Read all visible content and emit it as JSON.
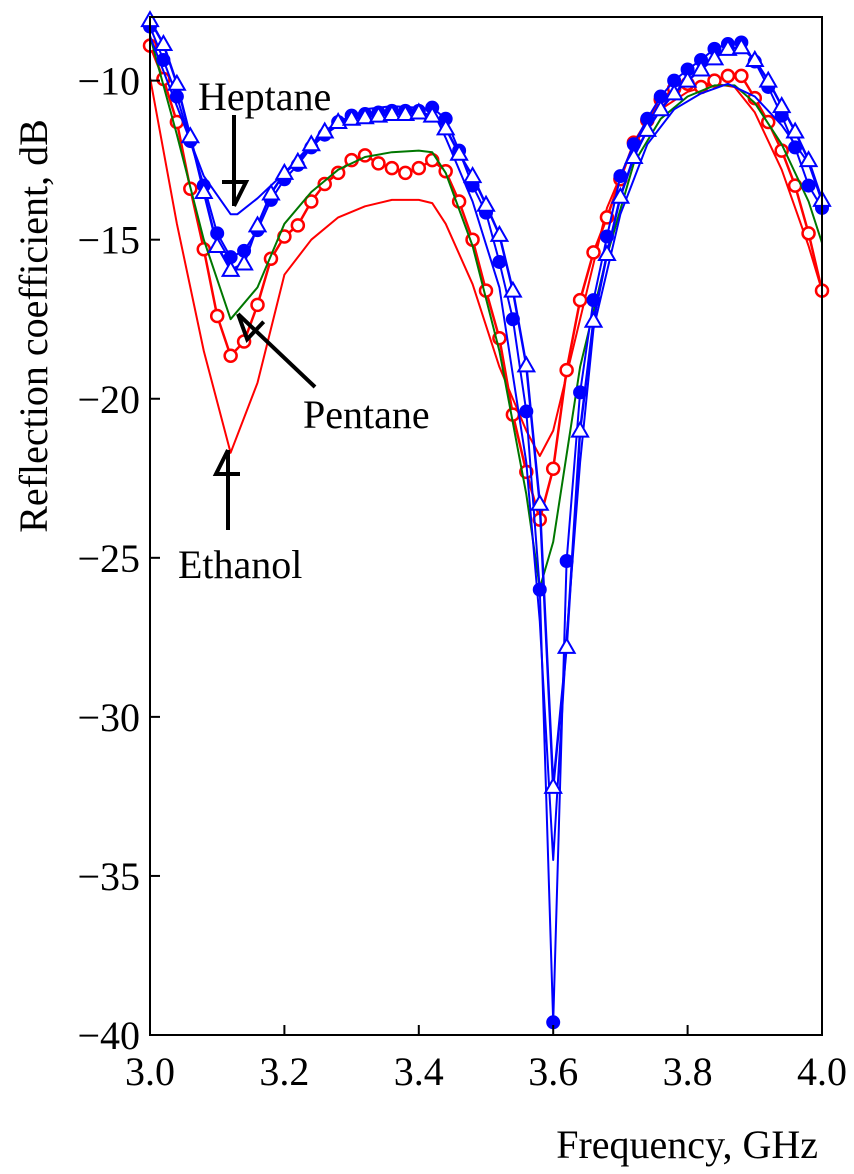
{
  "chart_data": {
    "type": "line",
    "xlabel": "Frequency, GHz",
    "ylabel": "Reflection coefficient, dB",
    "xlim": [
      3.0,
      4.0
    ],
    "ylim": [
      -40,
      -8
    ],
    "xticks": [
      "3.0",
      "3.2",
      "3.4",
      "3.6",
      "3.8",
      "4.0"
    ],
    "yticks": [
      "−10",
      "−15",
      "−20",
      "−25",
      "−30",
      "−35",
      "−40"
    ],
    "xtick_values": [
      3.0,
      3.2,
      3.4,
      3.6,
      3.8,
      4.0
    ],
    "ytick_values": [
      -10,
      -15,
      -20,
      -25,
      -30,
      -35,
      -40
    ],
    "grid": false,
    "legend": "none",
    "series": [
      {
        "color": "#ff0000",
        "marker": "none",
        "width": 2,
        "x": [
          3.0,
          3.04,
          3.08,
          3.12,
          3.16,
          3.2,
          3.24,
          3.28,
          3.32,
          3.36,
          3.4,
          3.42,
          3.44,
          3.48,
          3.52,
          3.56,
          3.58,
          3.6,
          3.64,
          3.68,
          3.72,
          3.76,
          3.8,
          3.84,
          3.87,
          3.9,
          3.94,
          3.98,
          4.0
        ],
        "y": [
          -9.9,
          -14.5,
          -18.5,
          -21.7,
          -19.5,
          -16.1,
          -15.0,
          -14.3,
          -13.95,
          -13.75,
          -13.75,
          -13.85,
          -14.5,
          -16.4,
          -19.0,
          -21.0,
          -21.8,
          -21.0,
          -17.5,
          -14.0,
          -12.0,
          -10.9,
          -10.35,
          -10.1,
          -10.2,
          -11.0,
          -12.8,
          -15.2,
          -16.6
        ]
      },
      {
        "color": "#ff0000",
        "marker": "open-circle",
        "width": 2.5,
        "x": [
          3.0,
          3.02,
          3.04,
          3.06,
          3.08,
          3.1,
          3.12,
          3.14,
          3.16,
          3.18,
          3.2,
          3.22,
          3.24,
          3.26,
          3.28,
          3.3,
          3.32,
          3.34,
          3.36,
          3.38,
          3.4,
          3.42,
          3.44,
          3.46,
          3.48,
          3.5,
          3.52,
          3.54,
          3.56,
          3.58,
          3.6,
          3.62,
          3.64,
          3.66,
          3.68,
          3.7,
          3.72,
          3.74,
          3.76,
          3.78,
          3.8,
          3.82,
          3.84,
          3.86,
          3.88,
          3.9,
          3.92,
          3.94,
          3.96,
          3.98,
          4.0
        ],
        "y": [
          -8.9,
          -9.95,
          -11.3,
          -13.4,
          -15.3,
          -17.4,
          -18.65,
          -18.2,
          -17.05,
          -15.6,
          -14.9,
          -14.55,
          -13.8,
          -13.25,
          -12.9,
          -12.5,
          -12.35,
          -12.6,
          -12.75,
          -12.9,
          -12.75,
          -12.5,
          -12.85,
          -13.8,
          -15.0,
          -16.6,
          -18.1,
          -20.5,
          -22.3,
          -23.8,
          -22.2,
          -19.1,
          -16.9,
          -15.4,
          -14.3,
          -13.1,
          -11.95,
          -11.25,
          -10.6,
          -10.25,
          -10.1,
          -10.2,
          -10.0,
          -9.85,
          -9.85,
          -10.55,
          -11.3,
          -12.2,
          -13.3,
          -14.8,
          -16.6
        ]
      },
      {
        "color": "#007700",
        "marker": "none",
        "width": 2,
        "x": [
          3.0,
          3.04,
          3.08,
          3.12,
          3.16,
          3.2,
          3.24,
          3.28,
          3.32,
          3.36,
          3.4,
          3.42,
          3.44,
          3.48,
          3.52,
          3.56,
          3.58,
          3.6,
          3.64,
          3.68,
          3.72,
          3.76,
          3.8,
          3.84,
          3.87,
          3.9,
          3.94,
          3.98,
          4.0
        ],
        "y": [
          -8.6,
          -11.7,
          -15.0,
          -17.5,
          -16.5,
          -14.5,
          -13.5,
          -12.8,
          -12.4,
          -12.25,
          -12.2,
          -12.25,
          -12.9,
          -15.2,
          -18.5,
          -23.0,
          -25.95,
          -24.5,
          -19.0,
          -15.5,
          -12.6,
          -11.2,
          -10.5,
          -10.15,
          -10.15,
          -10.7,
          -12.0,
          -13.8,
          -15.1
        ]
      },
      {
        "color": "#0000ff",
        "marker": "none",
        "width": 2,
        "x": [
          3.0,
          3.04,
          3.08,
          3.12,
          3.13,
          3.16,
          3.2,
          3.24,
          3.28,
          3.32,
          3.36,
          3.4,
          3.42,
          3.44,
          3.48,
          3.52,
          3.56,
          3.58,
          3.6,
          3.62,
          3.64,
          3.66,
          3.7,
          3.74,
          3.78,
          3.82,
          3.86,
          3.9,
          3.94,
          3.98,
          4.0
        ],
        "y": [
          -8.6,
          -10.8,
          -13.0,
          -14.2,
          -14.2,
          -13.7,
          -12.9,
          -12.0,
          -11.4,
          -10.9,
          -10.8,
          -10.85,
          -10.9,
          -11.8,
          -13.8,
          -16.5,
          -22.0,
          -27.0,
          -34.5,
          -27.5,
          -22.0,
          -17.8,
          -14.2,
          -12.0,
          -10.9,
          -10.4,
          -10.1,
          -10.5,
          -11.4,
          -12.6,
          -13.8
        ]
      },
      {
        "color": "#0000ff",
        "marker": "filled-circle",
        "width": 2,
        "x": [
          3.0,
          3.02,
          3.04,
          3.06,
          3.08,
          3.1,
          3.12,
          3.14,
          3.16,
          3.18,
          3.2,
          3.22,
          3.24,
          3.26,
          3.28,
          3.3,
          3.32,
          3.34,
          3.36,
          3.38,
          3.4,
          3.42,
          3.44,
          3.46,
          3.48,
          3.5,
          3.52,
          3.54,
          3.56,
          3.58,
          3.6,
          3.62,
          3.64,
          3.66,
          3.68,
          3.7,
          3.72,
          3.74,
          3.76,
          3.78,
          3.8,
          3.82,
          3.84,
          3.86,
          3.88,
          3.9,
          3.92,
          3.94,
          3.96,
          3.98,
          4.0
        ],
        "y": [
          -8.3,
          -9.35,
          -10.5,
          -11.9,
          -13.3,
          -14.8,
          -15.55,
          -15.35,
          -14.7,
          -13.75,
          -13.1,
          -12.65,
          -12.1,
          -11.7,
          -11.3,
          -11.1,
          -11.05,
          -11.0,
          -10.95,
          -10.95,
          -10.95,
          -10.85,
          -11.2,
          -12.2,
          -13.3,
          -14.15,
          -15.7,
          -17.5,
          -20.4,
          -26.0,
          -39.6,
          -25.1,
          -19.8,
          -16.9,
          -14.9,
          -13.0,
          -12.0,
          -11.2,
          -10.5,
          -10.0,
          -9.65,
          -9.35,
          -9.0,
          -8.85,
          -8.8,
          -9.4,
          -10.2,
          -11.1,
          -12.1,
          -13.3,
          -14.0
        ]
      },
      {
        "color": "#0000ff",
        "marker": "open-triangle",
        "width": 2.5,
        "x": [
          3.0,
          3.02,
          3.04,
          3.06,
          3.08,
          3.1,
          3.12,
          3.14,
          3.16,
          3.18,
          3.2,
          3.22,
          3.24,
          3.26,
          3.28,
          3.3,
          3.32,
          3.34,
          3.36,
          3.38,
          3.4,
          3.42,
          3.44,
          3.46,
          3.48,
          3.5,
          3.52,
          3.54,
          3.56,
          3.58,
          3.6,
          3.62,
          3.64,
          3.66,
          3.68,
          3.7,
          3.72,
          3.74,
          3.76,
          3.78,
          3.8,
          3.82,
          3.84,
          3.86,
          3.88,
          3.9,
          3.92,
          3.94,
          3.96,
          3.98,
          4.0
        ],
        "y": [
          -8.1,
          -8.85,
          -10.1,
          -11.75,
          -13.5,
          -15.2,
          -15.95,
          -15.75,
          -14.55,
          -13.55,
          -12.9,
          -12.55,
          -12.0,
          -11.6,
          -11.3,
          -11.2,
          -11.15,
          -11.1,
          -11.05,
          -11.05,
          -11.0,
          -11.1,
          -11.5,
          -12.3,
          -13.0,
          -13.9,
          -14.85,
          -16.6,
          -18.95,
          -23.3,
          -32.2,
          -27.8,
          -21.0,
          -17.55,
          -15.45,
          -13.65,
          -12.4,
          -11.55,
          -10.9,
          -10.4,
          -10.0,
          -9.65,
          -9.3,
          -9.0,
          -8.95,
          -9.35,
          -10.0,
          -10.8,
          -11.6,
          -12.5,
          -13.75
        ]
      }
    ],
    "annotations": [
      {
        "text": "Heptane",
        "target_x": 3.13,
        "target_y": -14.2
      },
      {
        "text": "Pentane",
        "target_x": 3.14,
        "target_y": -17.2
      },
      {
        "text": "Ethanol",
        "target_x": 3.12,
        "target_y": -21.5
      }
    ]
  }
}
